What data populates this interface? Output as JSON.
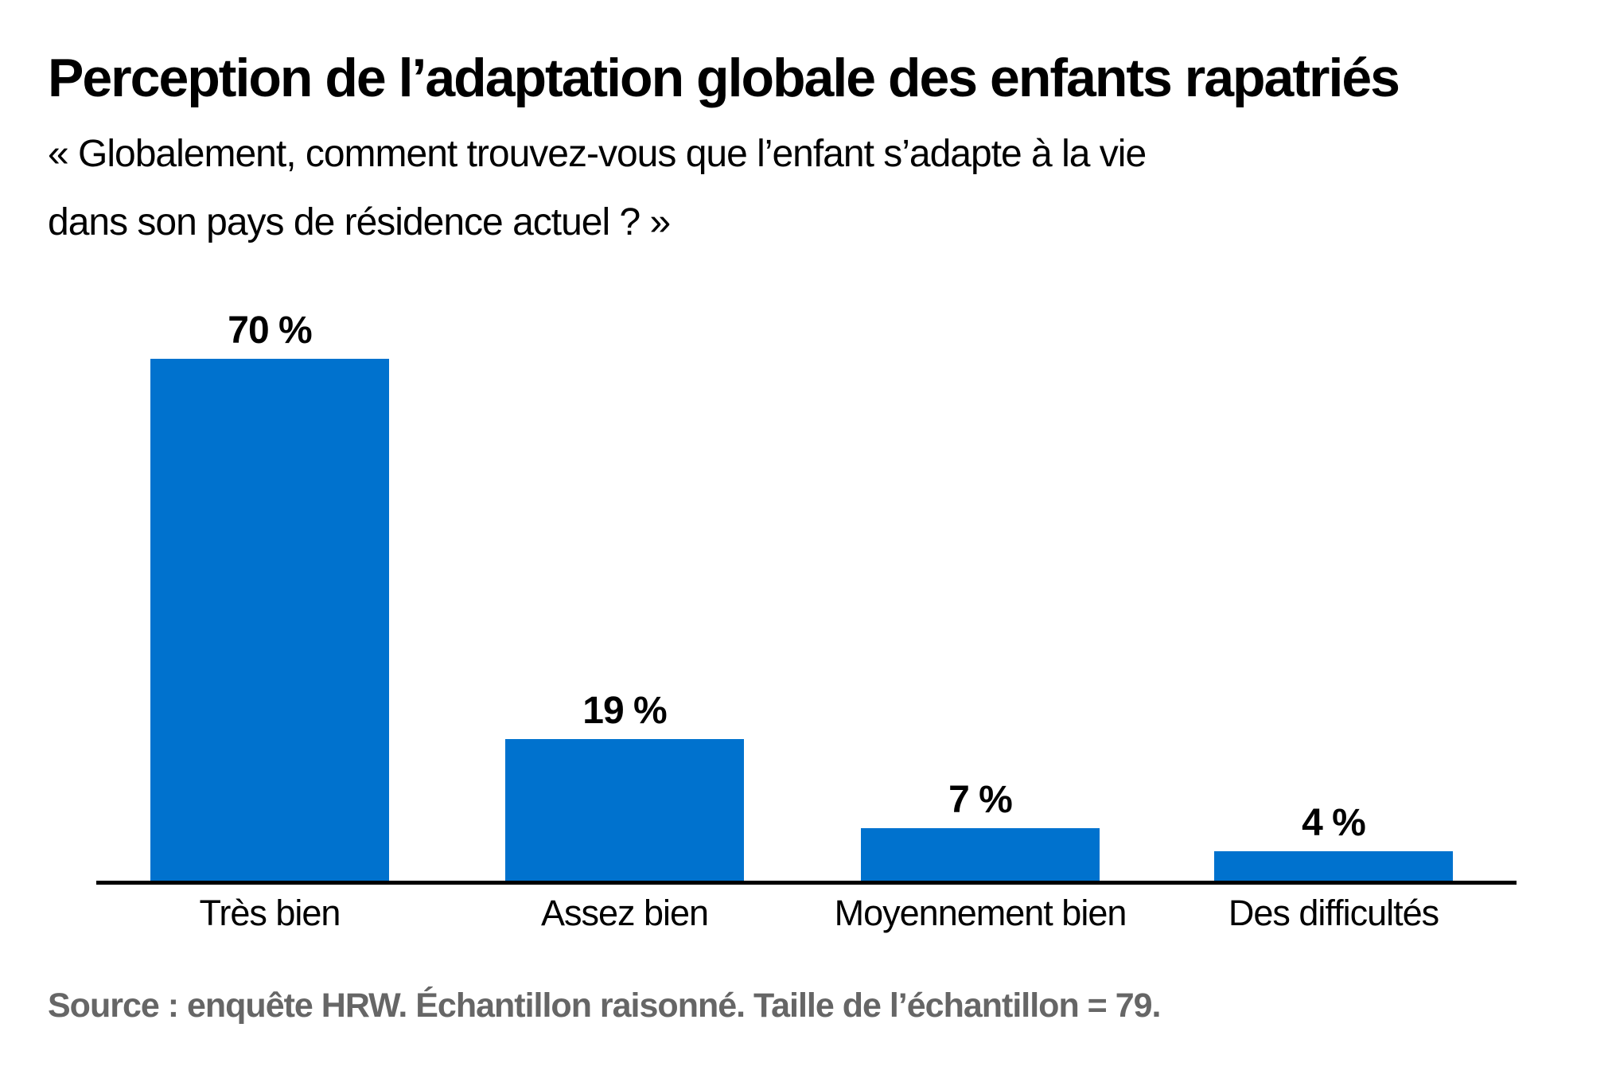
{
  "header": {
    "title": "Perception de l’adaptation globale des enfants rapatriés",
    "subtitle_line1": "« Globalement, comment trouvez-vous que l’enfant s’adapte à la vie",
    "subtitle_line2": "dans son pays de résidence actuel ? »"
  },
  "chart_data": {
    "type": "bar",
    "title": "Perception de l’adaptation globale des enfants rapatriés",
    "subtitle": "« Globalement, comment trouvez-vous que l’enfant s’adapte à la vie dans son pays de résidence actuel ? »",
    "categories": [
      "Très bien",
      "Assez bien",
      "Moyennement bien",
      "Des difficultés"
    ],
    "values": [
      70,
      19,
      7,
      4
    ],
    "value_labels": [
      "70 %",
      "19 %",
      "7 %",
      "4 %"
    ],
    "unit": "%",
    "ylim": [
      0,
      75
    ],
    "grid": false,
    "legend": "none",
    "bar_color": "#0072ce",
    "axis_color": "#000000"
  },
  "footer": {
    "source": "Source : enquête HRW. Échantillon raisonné. Taille de l’échantillon = 79."
  },
  "colors": {
    "background": "#ffffff",
    "bar": "#0072ce",
    "axis": "#000000",
    "text": "#000000",
    "source_text": "#666666"
  }
}
